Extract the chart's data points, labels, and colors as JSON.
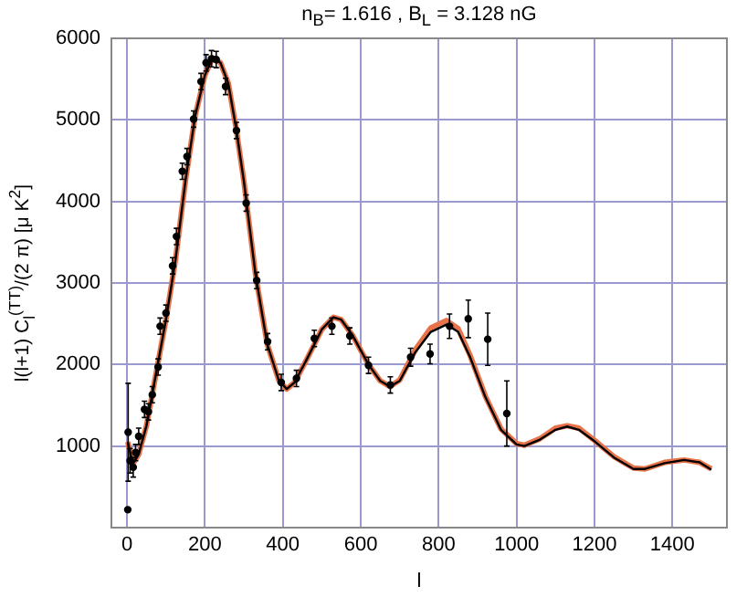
{
  "chart_data": {
    "type": "line",
    "title": "n$_{B}$= 1.616 ,  B$_{L}$ = 3.128 nG",
    "xlabel": "l",
    "ylabel": "l(l+1) C$_{l}$$^{(TT)}$/(2 π) [μ K$^{2}$]",
    "xlim": [
      -40,
      1540
    ],
    "xticks": [
      0,
      200,
      400,
      600,
      800,
      1000,
      1200,
      1400
    ],
    "ylim": [
      0,
      6000
    ],
    "yticks": [
      1000,
      2000,
      3000,
      4000,
      5000,
      6000
    ],
    "grid": true,
    "legend": false,
    "series": [
      {
        "color": "#e8734a",
        "x": [
          2,
          15,
          30,
          50,
          75,
          100,
          125,
          150,
          175,
          200,
          220,
          240,
          260,
          280,
          300,
          330,
          360,
          390,
          410,
          430,
          460,
          500,
          530,
          550,
          580,
          620,
          650,
          675,
          700,
          740,
          780,
          820,
          850,
          880,
          920,
          960,
          1000,
          1020,
          1060,
          1100,
          1130,
          1160,
          1200,
          1250,
          1300,
          1330,
          1380,
          1430,
          1470,
          1500
        ],
        "values": [
          1050,
          780,
          900,
          1250,
          1900,
          2550,
          3300,
          4250,
          5050,
          5550,
          5760,
          5700,
          5450,
          4900,
          4250,
          3100,
          2250,
          1800,
          1700,
          1780,
          2050,
          2430,
          2580,
          2550,
          2350,
          2000,
          1800,
          1730,
          1810,
          2180,
          2450,
          2540,
          2440,
          2120,
          1610,
          1210,
          1030,
          1010,
          1090,
          1220,
          1250,
          1220,
          1070,
          870,
          730,
          720,
          800,
          830,
          800,
          720
        ]
      },
      {
        "color": "#000000",
        "x": [
          2,
          15,
          30,
          50,
          75,
          100,
          125,
          150,
          175,
          200,
          220,
          240,
          260,
          280,
          300,
          330,
          360,
          390,
          410,
          430,
          460,
          500,
          530,
          550,
          580,
          620,
          650,
          675,
          700,
          740,
          780,
          820,
          850,
          880,
          920,
          960,
          1000,
          1020,
          1060,
          1100,
          1130,
          1160,
          1200,
          1250,
          1300,
          1330,
          1380,
          1430,
          1470,
          1500
        ],
        "values": [
          1050,
          780,
          900,
          1250,
          1900,
          2550,
          3300,
          4250,
          5050,
          5550,
          5760,
          5700,
          5450,
          4900,
          4250,
          3100,
          2250,
          1800,
          1700,
          1780,
          2050,
          2430,
          2580,
          2550,
          2350,
          2000,
          1800,
          1730,
          1800,
          2150,
          2400,
          2490,
          2400,
          2100,
          1600,
          1200,
          1020,
          1000,
          1080,
          1200,
          1240,
          1200,
          1060,
          860,
          720,
          720,
          790,
          830,
          800,
          710
        ]
      },
      {
        "type": "scatter",
        "color": "#000000",
        "marker": "circle",
        "x": [
          2,
          3,
          8,
          16,
          22,
          30,
          45,
          55,
          65,
          80,
          85,
          100,
          117,
          127,
          142,
          154,
          171,
          190,
          203,
          217,
          229,
          253,
          281,
          306,
          333,
          361,
          396,
          435,
          481,
          526,
          572,
          620,
          676,
          728,
          778,
          828,
          876,
          926,
          975
        ],
        "values": [
          220,
          1170,
          820,
          740,
          920,
          1120,
          1450,
          1420,
          1630,
          1970,
          2470,
          2630,
          3210,
          3570,
          4370,
          4550,
          5010,
          5470,
          5700,
          5750,
          5740,
          5410,
          4870,
          3980,
          3030,
          2280,
          1780,
          1830,
          2320,
          2470,
          2350,
          1990,
          1750,
          2090,
          2130,
          2470,
          2560,
          2310,
          1400
        ],
        "errors": [
          null,
          600,
          150,
          120,
          100,
          100,
          100,
          100,
          100,
          100,
          100,
          100,
          100,
          100,
          100,
          100,
          100,
          100,
          100,
          100,
          100,
          100,
          100,
          100,
          100,
          100,
          100,
          100,
          100,
          100,
          100,
          100,
          100,
          110,
          120,
          150,
          230,
          320,
          400
        ]
      }
    ]
  }
}
